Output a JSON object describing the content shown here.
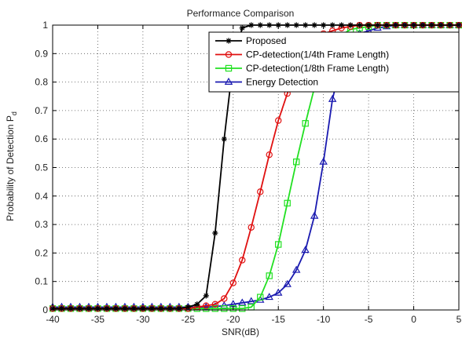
{
  "chart_data": {
    "type": "line",
    "title": "Performance Comparison",
    "xlabel": "SNR(dB)",
    "ylabel": "Probability of Detection P",
    "ylabel_subscript": "d",
    "xlim": [
      -40,
      5
    ],
    "ylim": [
      0,
      1
    ],
    "xticks": [
      -40,
      -35,
      -30,
      -25,
      -20,
      -15,
      -10,
      -5,
      0,
      5
    ],
    "yticks": [
      0,
      0.1,
      0.2,
      0.3,
      0.4,
      0.5,
      0.6,
      0.7,
      0.8,
      0.9,
      1
    ],
    "xtick_labels": [
      "-40",
      "-35",
      "-30",
      "-25",
      "-20",
      "-15",
      "-10",
      "-5",
      "0",
      "5"
    ],
    "ytick_labels": [
      "0",
      "0.1",
      "0.2",
      "0.3",
      "0.4",
      "0.5",
      "0.6",
      "0.7",
      "0.8",
      "0.9",
      "1"
    ],
    "grid": true,
    "grid_style": "dotted",
    "legend_position": "top-right",
    "series": [
      {
        "name": "Proposed",
        "color": "#000000",
        "marker": "star",
        "x": [
          -40,
          -39,
          -38,
          -37,
          -36,
          -35,
          -34,
          -33,
          -32,
          -31,
          -30,
          -29,
          -28,
          -27,
          -26,
          -25,
          -24,
          -23,
          -22,
          -21,
          -20,
          -19,
          -18,
          -17,
          -16,
          -15,
          -14,
          -13,
          -12,
          -11,
          -10,
          -9,
          -8,
          -7,
          -6,
          -5,
          -4,
          -3,
          -2,
          -1,
          0,
          1,
          2,
          3,
          4,
          5
        ],
        "y": [
          0.005,
          0.005,
          0.005,
          0.005,
          0.005,
          0.005,
          0.005,
          0.005,
          0.005,
          0.005,
          0.005,
          0.005,
          0.005,
          0.005,
          0.005,
          0.01,
          0.02,
          0.05,
          0.27,
          0.6,
          0.87,
          0.99,
          1,
          1,
          1,
          1,
          1,
          1,
          1,
          1,
          1,
          1,
          1,
          1,
          1,
          1,
          1,
          1,
          1,
          1,
          1,
          1,
          1,
          1,
          1,
          1
        ]
      },
      {
        "name": "CP-detection(1/4th Frame Length)",
        "color": "#e01010",
        "marker": "circle",
        "x": [
          -40,
          -39,
          -38,
          -37,
          -36,
          -35,
          -34,
          -33,
          -32,
          -31,
          -30,
          -29,
          -28,
          -27,
          -26,
          -25,
          -24,
          -23,
          -22,
          -21,
          -20,
          -19,
          -18,
          -17,
          -16,
          -15,
          -14,
          -13,
          -12,
          -11,
          -10,
          -9,
          -8,
          -7,
          -6,
          -5,
          -4,
          -3,
          -2,
          -1,
          0,
          1,
          2,
          3,
          4,
          5
        ],
        "y": [
          0.005,
          0.005,
          0.005,
          0.005,
          0.005,
          0.005,
          0.005,
          0.005,
          0.005,
          0.005,
          0.005,
          0.005,
          0.005,
          0.005,
          0.005,
          0.005,
          0.01,
          0.015,
          0.02,
          0.04,
          0.095,
          0.175,
          0.29,
          0.415,
          0.545,
          0.665,
          0.76,
          0.84,
          0.9,
          0.94,
          0.97,
          0.98,
          0.99,
          0.995,
          1,
          1,
          1,
          1,
          1,
          1,
          1,
          1,
          1,
          1,
          1,
          1
        ]
      },
      {
        "name": "CP-detection(1/8th Frame Length)",
        "color": "#22e022",
        "marker": "square",
        "x": [
          -40,
          -39,
          -38,
          -37,
          -36,
          -35,
          -34,
          -33,
          -32,
          -31,
          -30,
          -29,
          -28,
          -27,
          -26,
          -25,
          -24,
          -23,
          -22,
          -21,
          -20,
          -19,
          -18,
          -17,
          -16,
          -15,
          -14,
          -13,
          -12,
          -11,
          -10,
          -9,
          -8,
          -7,
          -6,
          -5,
          -4,
          -3,
          -2,
          -1,
          0,
          1,
          2,
          3,
          4,
          5
        ],
        "y": [
          0.005,
          0.005,
          0.005,
          0.005,
          0.005,
          0.005,
          0.005,
          0.005,
          0.005,
          0.005,
          0.005,
          0.005,
          0.005,
          0.005,
          0.005,
          0.005,
          0.005,
          0.005,
          0.005,
          0.005,
          0.005,
          0.005,
          0.01,
          0.045,
          0.12,
          0.23,
          0.375,
          0.52,
          0.655,
          0.78,
          0.87,
          0.93,
          0.965,
          0.985,
          0.99,
          0.995,
          1,
          1,
          1,
          1,
          1,
          1,
          1,
          1,
          1,
          1
        ]
      },
      {
        "name": "Energy Detection",
        "color": "#1a1ab0",
        "marker": "triangle",
        "x": [
          -40,
          -39,
          -38,
          -37,
          -36,
          -35,
          -34,
          -33,
          -32,
          -31,
          -30,
          -29,
          -28,
          -27,
          -26,
          -25,
          -24,
          -23,
          -22,
          -21,
          -20,
          -19,
          -18,
          -17,
          -16,
          -15,
          -14,
          -13,
          -12,
          -11,
          -10,
          -9,
          -8,
          -7,
          -6,
          -5,
          -4,
          -3,
          -2,
          -1,
          0,
          1,
          2,
          3,
          4,
          5
        ],
        "y": [
          0.01,
          0.01,
          0.01,
          0.01,
          0.01,
          0.01,
          0.01,
          0.01,
          0.01,
          0.01,
          0.01,
          0.01,
          0.01,
          0.01,
          0.01,
          0.01,
          0.01,
          0.01,
          0.012,
          0.015,
          0.02,
          0.025,
          0.03,
          0.035,
          0.045,
          0.06,
          0.09,
          0.14,
          0.21,
          0.33,
          0.52,
          0.74,
          0.87,
          0.94,
          0.97,
          0.98,
          0.99,
          0.995,
          1,
          1,
          1,
          1,
          1,
          1,
          1,
          1
        ]
      }
    ]
  }
}
